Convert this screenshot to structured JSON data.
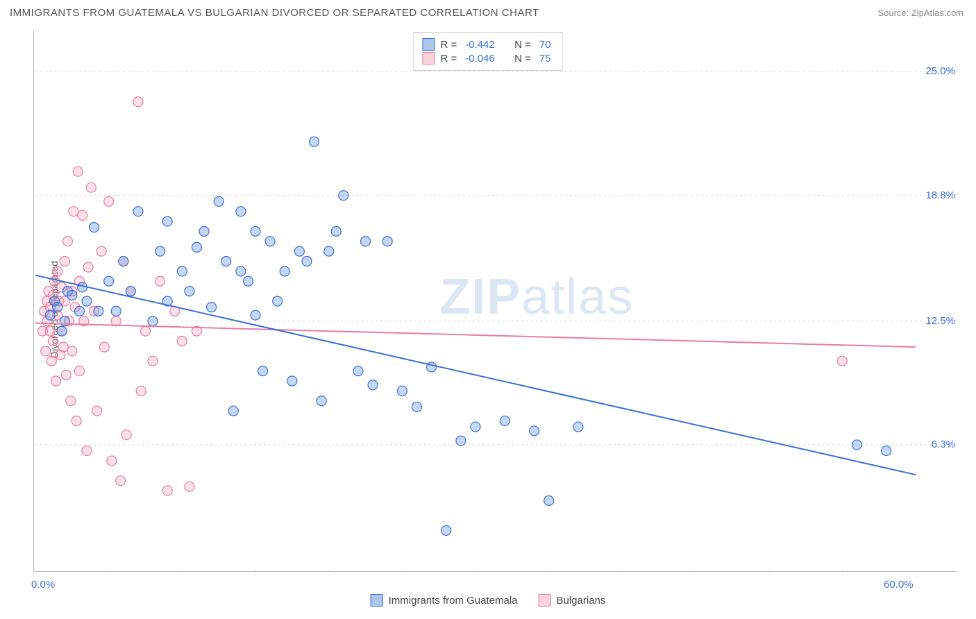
{
  "title": "IMMIGRANTS FROM GUATEMALA VS BULGARIAN DIVORCED OR SEPARATED CORRELATION CHART",
  "source": "Source: ZipAtlas.com",
  "y_axis_label": "Divorced or Separated",
  "watermark": "ZIPatlas",
  "chart": {
    "type": "scatter",
    "background_color": "#ffffff",
    "grid_color": "#d8d8d8",
    "axis_color": "#bbbbbb",
    "xlim": [
      0,
      60
    ],
    "ylim": [
      0,
      27
    ],
    "x_ticks_minor": [
      5,
      10,
      15,
      20,
      25,
      30,
      35,
      40,
      45,
      50,
      55
    ],
    "x_tick_labels": [
      {
        "v": 0,
        "label": "0.0%"
      },
      {
        "v": 60,
        "label": "60.0%"
      }
    ],
    "y_gridlines": [
      6.3,
      12.5,
      18.8,
      25.0
    ],
    "y_tick_labels": [
      {
        "v": 6.3,
        "label": "6.3%"
      },
      {
        "v": 12.5,
        "label": "12.5%"
      },
      {
        "v": 18.8,
        "label": "18.8%"
      },
      {
        "v": 25.0,
        "label": "25.0%"
      }
    ],
    "marker_radius": 7,
    "marker_fill_opacity": 0.35,
    "marker_stroke_width": 1.2,
    "line_width": 2,
    "series": [
      {
        "id": "guatemala",
        "name": "Immigrants from Guatemala",
        "color": "#5b8fd8",
        "stroke": "#3b6fd8",
        "R": "-0.442",
        "N": "70",
        "regression": {
          "x1": 0,
          "y1": 14.8,
          "x2": 60,
          "y2": 4.8
        },
        "points": [
          [
            1,
            12.8
          ],
          [
            1.5,
            13.2
          ],
          [
            1.3,
            13.5
          ],
          [
            2,
            12.5
          ],
          [
            2.2,
            14
          ],
          [
            1.8,
            12
          ],
          [
            2.5,
            13.8
          ],
          [
            3,
            13
          ],
          [
            3.2,
            14.2
          ],
          [
            3.5,
            13.5
          ],
          [
            4,
            17.2
          ],
          [
            4.3,
            13
          ],
          [
            5,
            14.5
          ],
          [
            5.5,
            13
          ],
          [
            6,
            15.5
          ],
          [
            6.5,
            14
          ],
          [
            7,
            18
          ],
          [
            8,
            12.5
          ],
          [
            8.5,
            16
          ],
          [
            9,
            13.5
          ],
          [
            9,
            17.5
          ],
          [
            10,
            15
          ],
          [
            10.5,
            14
          ],
          [
            11,
            16.2
          ],
          [
            11.5,
            17
          ],
          [
            12,
            13.2
          ],
          [
            12.5,
            18.5
          ],
          [
            13,
            15.5
          ],
          [
            13.5,
            8
          ],
          [
            14,
            15
          ],
          [
            14,
            18
          ],
          [
            14.5,
            14.5
          ],
          [
            15,
            12.8
          ],
          [
            15,
            17
          ],
          [
            15.5,
            10
          ],
          [
            16,
            16.5
          ],
          [
            16.5,
            13.5
          ],
          [
            17,
            15
          ],
          [
            17.5,
            9.5
          ],
          [
            18,
            16
          ],
          [
            18.5,
            15.5
          ],
          [
            19,
            21.5
          ],
          [
            19.5,
            8.5
          ],
          [
            20,
            16
          ],
          [
            20.5,
            17
          ],
          [
            21,
            18.8
          ],
          [
            22,
            10
          ],
          [
            22.5,
            16.5
          ],
          [
            23,
            9.3
          ],
          [
            24,
            16.5
          ],
          [
            25,
            9
          ],
          [
            26,
            8.2
          ],
          [
            27,
            10.2
          ],
          [
            28,
            2
          ],
          [
            29,
            6.5
          ],
          [
            30,
            7.2
          ],
          [
            32,
            7.5
          ],
          [
            34,
            7
          ],
          [
            35,
            3.5
          ],
          [
            37,
            7.2
          ],
          [
            56,
            6.3
          ],
          [
            58,
            6.0
          ]
        ]
      },
      {
        "id": "bulgarians",
        "name": "Bulgarians",
        "color": "#f5a8bc",
        "stroke": "#e87ca0",
        "R": "-0.046",
        "N": "75",
        "regression": {
          "x1": 0,
          "y1": 12.4,
          "x2": 60,
          "y2": 11.2
        },
        "points": [
          [
            0.5,
            12
          ],
          [
            0.6,
            13
          ],
          [
            0.7,
            11
          ],
          [
            0.8,
            13.5
          ],
          [
            0.8,
            12.5
          ],
          [
            0.9,
            14
          ],
          [
            1,
            13.2
          ],
          [
            1,
            12
          ],
          [
            1.1,
            10.5
          ],
          [
            1.2,
            13.8
          ],
          [
            1.2,
            11.5
          ],
          [
            1.3,
            14.5
          ],
          [
            1.4,
            9.5
          ],
          [
            1.5,
            12.8
          ],
          [
            1.5,
            15
          ],
          [
            1.6,
            13.5
          ],
          [
            1.7,
            10.8
          ],
          [
            1.8,
            14.2
          ],
          [
            1.8,
            12
          ],
          [
            1.9,
            11.2
          ],
          [
            2,
            13.5
          ],
          [
            2,
            15.5
          ],
          [
            2.1,
            9.8
          ],
          [
            2.2,
            16.5
          ],
          [
            2.3,
            12.5
          ],
          [
            2.4,
            8.5
          ],
          [
            2.5,
            14
          ],
          [
            2.5,
            11
          ],
          [
            2.6,
            18
          ],
          [
            2.7,
            13.2
          ],
          [
            2.8,
            7.5
          ],
          [
            2.9,
            20
          ],
          [
            3,
            14.5
          ],
          [
            3,
            10
          ],
          [
            3.2,
            17.8
          ],
          [
            3.3,
            12.5
          ],
          [
            3.5,
            6
          ],
          [
            3.6,
            15.2
          ],
          [
            3.8,
            19.2
          ],
          [
            4,
            13
          ],
          [
            4.2,
            8
          ],
          [
            4.5,
            16
          ],
          [
            4.7,
            11.2
          ],
          [
            5,
            18.5
          ],
          [
            5.2,
            5.5
          ],
          [
            5.5,
            12.5
          ],
          [
            5.8,
            4.5
          ],
          [
            6,
            15.5
          ],
          [
            6.2,
            6.8
          ],
          [
            6.5,
            14
          ],
          [
            7,
            23.5
          ],
          [
            7.2,
            9
          ],
          [
            7.5,
            12
          ],
          [
            8,
            10.5
          ],
          [
            8.5,
            14.5
          ],
          [
            9,
            4
          ],
          [
            9.5,
            13
          ],
          [
            10,
            11.5
          ],
          [
            10.5,
            4.2
          ],
          [
            11,
            12
          ],
          [
            55,
            10.5
          ]
        ]
      }
    ]
  },
  "legend_top_labels": {
    "R": "R =",
    "N": "N ="
  },
  "legend_bottom": [
    {
      "series": "guatemala"
    },
    {
      "series": "bulgarians"
    }
  ]
}
